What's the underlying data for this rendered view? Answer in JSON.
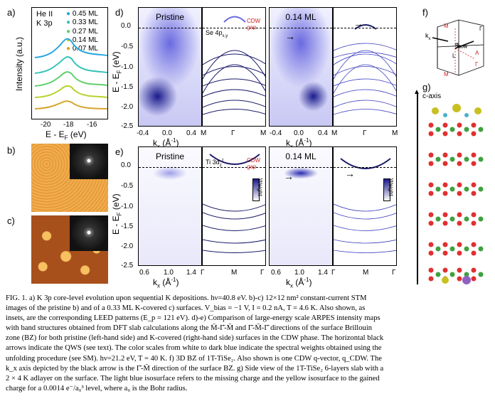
{
  "figure": {
    "panel_labels": [
      "a)",
      "b)",
      "c)",
      "d)",
      "e)",
      "f)",
      "g)"
    ],
    "panel_a": {
      "title_line1": "He II",
      "title_line2": "K 3p",
      "ylabel": "Intensity (a.u.)",
      "xlabel": "E - E",
      "xlabel_sub": "F",
      "xlabel_unit": " (eV)",
      "xticks": [
        "-20",
        "-18",
        "-16"
      ],
      "legend": [
        {
          "label": "0.45 ML",
          "color": "#2aa7e0"
        },
        {
          "label": "0.33 ML",
          "color": "#36c3b8"
        },
        {
          "label": "0.27 ML",
          "color": "#5fcf6a"
        },
        {
          "label": "0.14 ML",
          "color": "#b8d22c"
        },
        {
          "label": "0.07 ML",
          "color": "#d9a42c"
        }
      ]
    },
    "panel_d": {
      "title_left": "Pristine",
      "title_right": "0.14 ML",
      "ylabel": "E - E",
      "ylabel_sub": "F",
      "ylabel_unit": " (eV)",
      "yticks": [
        "0.0",
        "-0.5",
        "-1.0",
        "-1.5",
        "-2.0",
        "-2.5"
      ],
      "xticks_left": [
        "-0.4",
        "0.0",
        "0.4"
      ],
      "xticks_right": [
        "-0.4",
        "0.0",
        "0.4"
      ],
      "xlabel": "k",
      "xlabel_sub": "x",
      "xlabel_unit": " (Å",
      "xlabel_sup": "-1",
      "xlabel_close": ")",
      "kpath": [
        "M",
        "Γ",
        "M"
      ],
      "annotation_orbital": "Se 4p",
      "annotation_orbital_sub": "x,y",
      "cdw_label": "CDW",
      "gap_label": "gap"
    },
    "panel_e": {
      "title_left": "Pristine",
      "title_right": "0.14 ML",
      "ylabel": "E - E",
      "ylabel_sub": "F",
      "ylabel_unit": " (eV)",
      "yticks": [
        "0.0",
        "-0.5",
        "-1.0",
        "-1.5",
        "-2.0",
        "-2.5"
      ],
      "xticks_left": [
        "0.6",
        "1.0",
        "1.4"
      ],
      "xticks_right": [
        "0.6",
        "1.0",
        "1.4"
      ],
      "xlabel": "k",
      "xlabel_sub": "x",
      "xlabel_unit": " (Å",
      "xlabel_sup": "-1",
      "xlabel_close": ")",
      "kpath": [
        "Γ",
        "M",
        "Γ"
      ],
      "annotation_orbital": "Ti 3d",
      "annotation_orbital_sub": "z",
      "annotation_orbital_sup": "2",
      "cdw_label": "CDW",
      "gap_label": "gap",
      "colorbar_label": "Weight"
    },
    "panel_f": {
      "labels": [
        "M",
        "Γ",
        "k",
        "x",
        "q",
        "CDW",
        "L",
        "A",
        "Γ",
        "M"
      ]
    },
    "panel_g": {
      "axis_label": "c-axis"
    }
  },
  "caption": {
    "text": "FIG. 1. a) K 3p core-level evolution upon sequential K depositions. hν=40.8 eV. b)-c) 12×12 nm² constant-current STM images of the pristine b) and of a 0.33 ML K-covered c) surfaces. V_bias = −1 V, I = 0.2 nA, T = 4.6 K. Also shown, as insets, are the corresponding LEED patterns (E_p = 121 eV). d)-e) Comparison of large-energy scale ARPES intensity maps with band structures obtained from DFT slab calculations along the M̄-Γ̄-M̄ and Γ̄-M̄-Γ̄ directions of the surface Brillouin zone (BZ) for both pristine (left-hand side) and K-covered (right-hand side) surfaces in the CDW phase. The horizontal black arrows indicate the QWS (see text). The color scales from white to dark blue indicate the spectral weights obtained using the unfolding procedure (see SM). hν=21.2 eV, T = 40 K. f) 3D BZ of 1T-TiSe₂. Also shown is one CDW q-vector, q_CDW. The k_x axis depicted by the black arrow is the Γ̄-M̄ direction of the surface BZ. g) Side view of the 1T-TiSe₂ 6-layers slab with a 2 × 4 K adlayer on the surface. The light blue isosurface refers to the missing charge and the yellow isosurface to the gained charge for a 0.0014 e⁻/a₀³ level, where a₀ is the Bohr radius.",
    "lines": [
      "FIG. 1. a) K 3p core-level evolution upon sequential K depositions. hν=40.8 eV. b)-c) 12×12 nm² constant-current STM",
      "images of the pristine b) and of a 0.33 ML K-covered c) surfaces. V_bias = −1 V, I = 0.2 nA, T = 4.6 K. Also shown, as",
      "insets, are the corresponding LEED patterns (E_p = 121 eV). d)-e) Comparison of large-energy scale ARPES intensity maps",
      "with band structures obtained from DFT slab calculations along the M̄-Γ̄-M̄ and Γ̄-M̄-Γ̄ directions of the surface Brillouin",
      "zone (BZ) for both pristine (left-hand side) and K-covered (right-hand side) surfaces in the CDW phase. The horizontal black",
      "arrows indicate the QWS (see text). The color scales from white to dark blue indicate the spectral weights obtained using the",
      "unfolding procedure (see SM). hν=21.2 eV, T = 40 K. f) 3D BZ of 1T-TiSe₂. Also shown is one CDW q-vector, q_CDW. The",
      "k_x axis depicted by the black arrow is the Γ̄-M̄ direction of the surface BZ. g) Side view of the 1T-TiSe₂ 6-layers slab with a",
      "2 × 4 K adlayer on the surface. The light blue isosurface refers to the missing charge and the yellow isosurface to the gained",
      "charge for a 0.0014 e⁻/a₀³ level, where a₀ is the Bohr radius."
    ]
  }
}
